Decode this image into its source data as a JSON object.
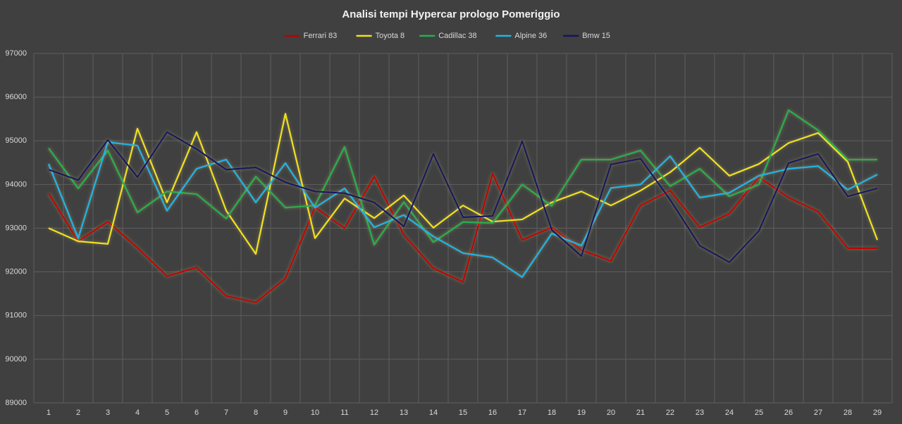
{
  "chart_data": {
    "type": "line",
    "title": "Analisi tempi Hypercar prologo Pomeriggio",
    "categories": [
      1,
      2,
      3,
      4,
      5,
      6,
      7,
      8,
      9,
      10,
      11,
      12,
      13,
      14,
      15,
      16,
      17,
      18,
      19,
      20,
      21,
      22,
      23,
      24,
      25,
      26,
      27,
      28,
      29
    ],
    "ylim": [
      89000,
      97000
    ],
    "yticks": [
      89000,
      90000,
      91000,
      92000,
      93000,
      94000,
      95000,
      96000,
      97000
    ],
    "grid": true,
    "legend": "top",
    "series": [
      {
        "name": "Ferrari 83",
        "color": "#c00000",
        "values": [
          93800,
          92700,
          93150,
          92550,
          91900,
          92100,
          91450,
          91300,
          91850,
          93480,
          93000,
          94180,
          92850,
          92080,
          91770,
          94250,
          92730,
          93020,
          92500,
          92250,
          93520,
          93860,
          93020,
          93330,
          94170,
          93700,
          93380,
          92540,
          92540
        ]
      },
      {
        "name": "Toyota 8",
        "color": "#f2e01c",
        "values": [
          93000,
          92700,
          92640,
          95280,
          93590,
          95200,
          93400,
          92410,
          95620,
          92770,
          93680,
          93230,
          93750,
          93010,
          93520,
          93150,
          93200,
          93590,
          93840,
          93520,
          93860,
          94280,
          94840,
          94200,
          94470,
          94950,
          95180,
          94520,
          92730
        ]
      },
      {
        "name": "Cadillac 38",
        "color": "#22b14c",
        "values": [
          94830,
          93910,
          94780,
          93360,
          93840,
          93780,
          93220,
          94180,
          93470,
          93520,
          94860,
          92620,
          93600,
          92680,
          93140,
          93120,
          94000,
          93510,
          94570,
          94570,
          94780,
          93960,
          94360,
          93730,
          94000,
          95700,
          95240,
          94570,
          94570
        ]
      },
      {
        "name": "Alpine 36",
        "color": "#1fb4e8",
        "values": [
          94470,
          92770,
          94970,
          94890,
          93400,
          94360,
          94570,
          93590,
          94490,
          93470,
          93910,
          93020,
          93300,
          92810,
          92430,
          92330,
          91880,
          92880,
          92600,
          93920,
          94000,
          94650,
          93700,
          93810,
          94200,
          94360,
          94420,
          93880,
          94230
        ]
      },
      {
        "name": "Bmw 15",
        "color": "#14145e",
        "values": [
          94340,
          94100,
          95020,
          94170,
          95200,
          94810,
          94340,
          94390,
          94050,
          93840,
          93800,
          93590,
          93040,
          94700,
          93250,
          93280,
          94990,
          92960,
          92360,
          94460,
          94590,
          93650,
          92600,
          92220,
          92940,
          94490,
          94700,
          93730,
          93910
        ]
      }
    ]
  }
}
